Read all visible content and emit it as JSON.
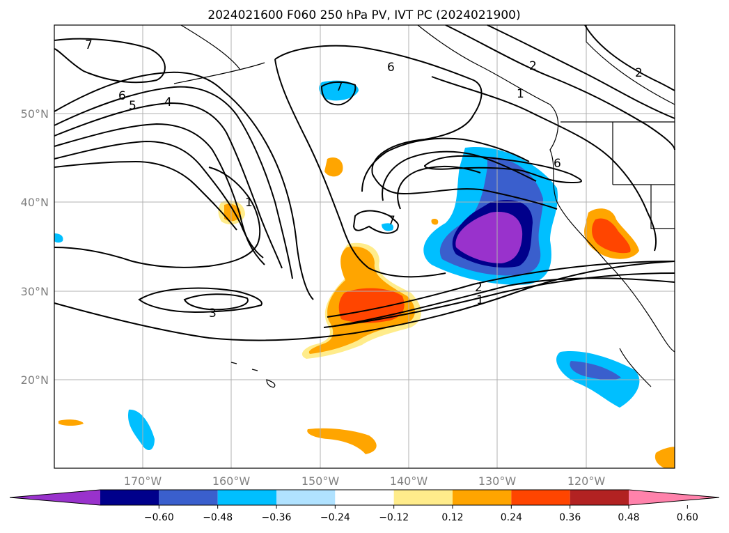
{
  "title": "2024021600 F060 250 hPa PV, IVT PC (2024021900)",
  "lat_labels": [
    "50°N",
    "40°N",
    "30°N",
    "20°N"
  ],
  "lon_labels": [
    "170°W",
    "160°W",
    "150°W",
    "140°W",
    "130°W",
    "120°W"
  ],
  "contour_labels": [
    "7",
    "6",
    "5",
    "4",
    "6",
    "7",
    "2",
    "2",
    "1",
    "6",
    "1",
    "7",
    "2",
    "1",
    "3"
  ],
  "colorbar": {
    "ticks": [
      "−0.60",
      "−0.48",
      "−0.36",
      "−0.24",
      "−0.12",
      "0.12",
      "0.24",
      "0.36",
      "0.48",
      "0.60"
    ],
    "colors": [
      "#9932cc",
      "#00008b",
      "#3a5fcd",
      "#00bfff",
      "#b0e2ff",
      "#ffffff",
      "#ffec8b",
      "#ffa500",
      "#ff4500",
      "#b22222",
      "#ff82ab"
    ]
  }
}
